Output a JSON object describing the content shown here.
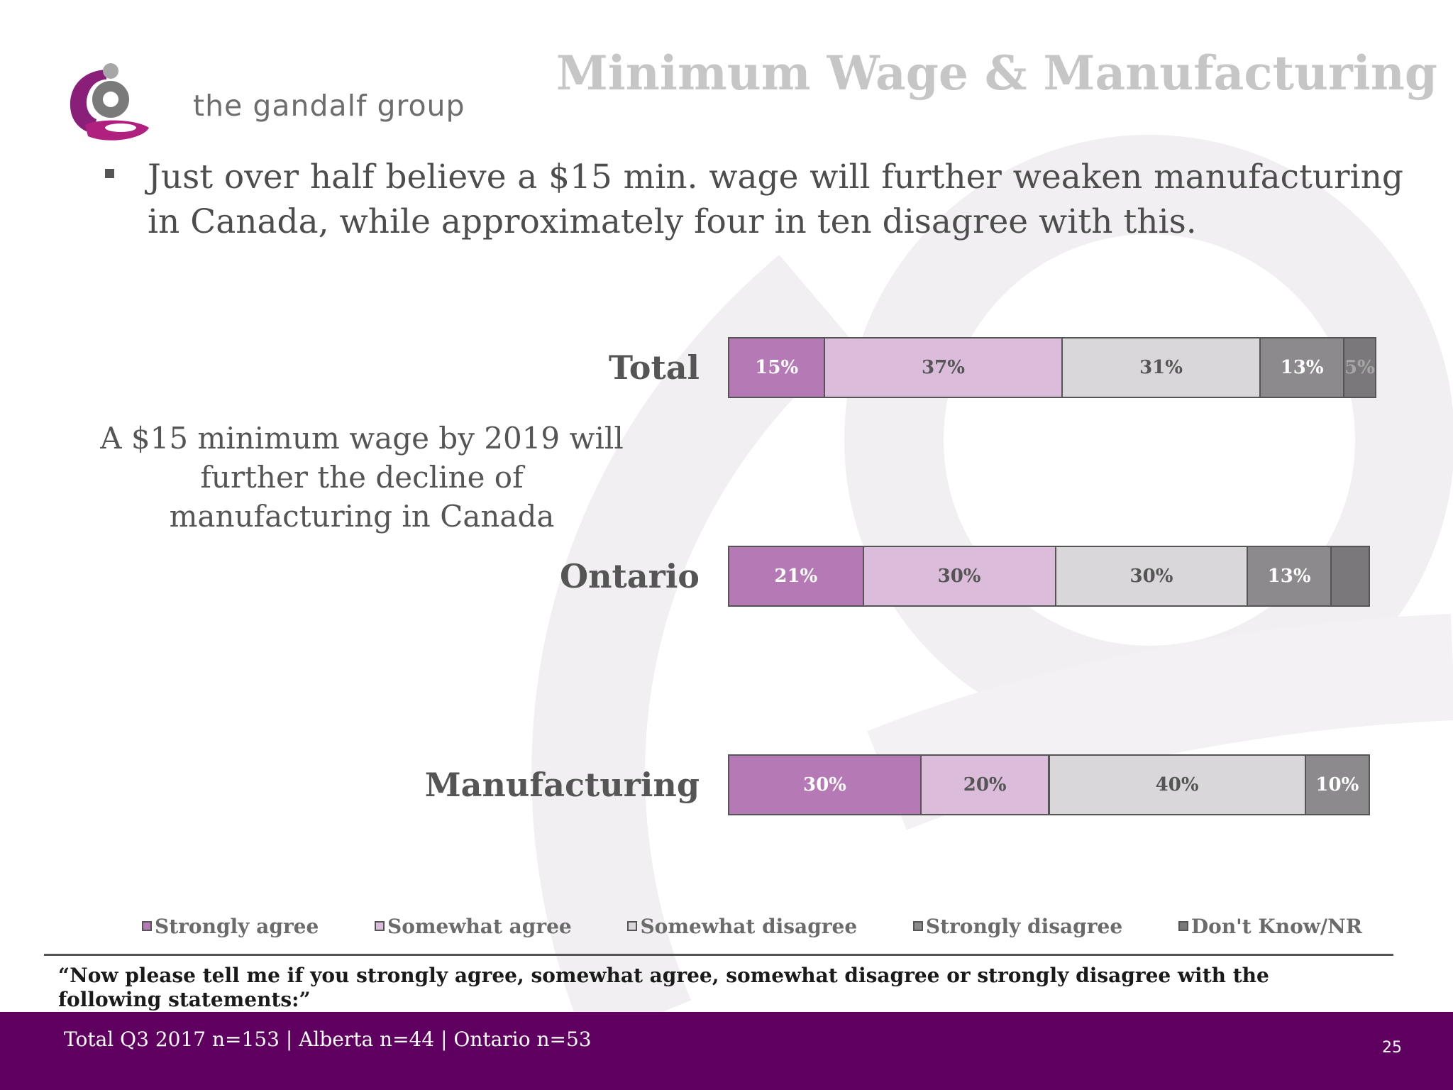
{
  "logo": {
    "company": "the gandalf group"
  },
  "header": {
    "title": "Minimum Wage & Manufacturing"
  },
  "bullet": "Just over half believe a $15 min. wage will further weaken manufacturing in Canada, while approximately four in ten disagree with this.",
  "statement": "A $15 minimum wage by 2019 will further the decline of manufacturing in Canada",
  "colors": {
    "strongly_agree": "#b57ab5",
    "somewhat_agree": "#dbbcdb",
    "somewhat_disagree": "#d9d7d9",
    "strongly_disagree": "#8c8a8c",
    "dont_know": "#7a787a",
    "footer": "#5f0060"
  },
  "chart_data": {
    "type": "bar",
    "orientation": "horizontal",
    "stacked": true,
    "categories": [
      "Total",
      "Ontario",
      "Manufacturing"
    ],
    "series": [
      {
        "name": "Strongly agree",
        "values": [
          15,
          21,
          30
        ],
        "labels": [
          "15%",
          "21%",
          "30%"
        ],
        "color": "#b57ab5",
        "label_color": "#ffffff"
      },
      {
        "name": "Somewhat agree",
        "values": [
          37,
          30,
          20
        ],
        "labels": [
          "37%",
          "30%",
          "20%"
        ],
        "color": "#dbbcdb",
        "label_color": "#555555"
      },
      {
        "name": "Somewhat disagree",
        "values": [
          31,
          30,
          40
        ],
        "labels": [
          "31%",
          "30%",
          "40%"
        ],
        "color": "#d9d7d9",
        "label_color": "#555555"
      },
      {
        "name": "Strongly disagree",
        "values": [
          13,
          13,
          10
        ],
        "labels": [
          "13%",
          "13%",
          "10%"
        ],
        "color": "#8c8a8c",
        "label_color": "#ffffff"
      },
      {
        "name": "Don't Know/NR",
        "values": [
          5,
          6,
          0
        ],
        "labels": [
          "5%",
          "",
          ""
        ],
        "color": "#7a787a",
        "label_color": "#a6a6a6"
      }
    ],
    "xlim": [
      0,
      100
    ],
    "legend_position": "bottom",
    "grid": false
  },
  "question": "“Now please tell me if you strongly agree, somewhat agree, somewhat disagree or strongly disagree with the following statements:”",
  "footer": {
    "sample": "Total Q3 2017 n=153 | Alberta n=44 | Ontario n=53",
    "page": "25"
  }
}
